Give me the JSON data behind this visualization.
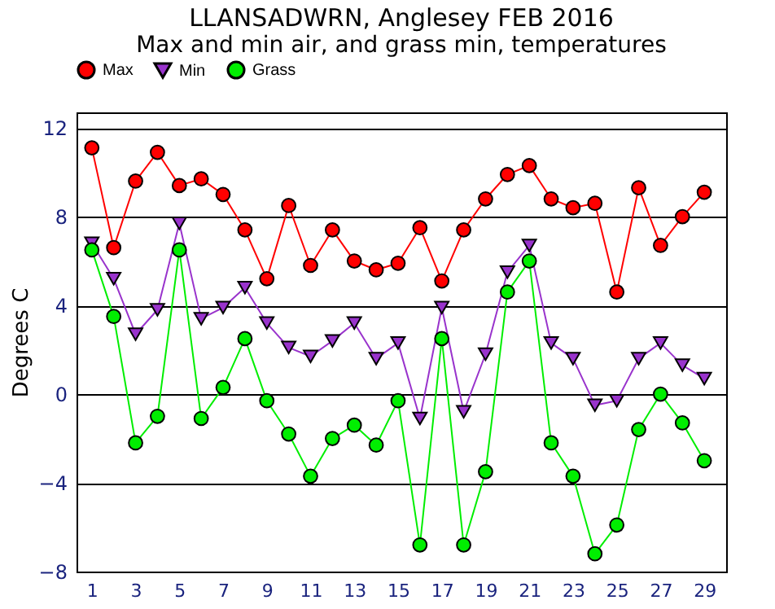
{
  "chart_data": {
    "type": "line",
    "title": "LLANSADWRN, Anglesey FEB 2016",
    "subtitle": "Max and min air, and grass min, temperatures",
    "ylabel": "Degrees C",
    "x": [
      1,
      2,
      3,
      4,
      5,
      6,
      7,
      8,
      9,
      10,
      11,
      12,
      13,
      14,
      15,
      16,
      17,
      18,
      19,
      20,
      21,
      22,
      23,
      24,
      25,
      26,
      27,
      28,
      29
    ],
    "series": [
      {
        "name": "Max",
        "color": "#ff0000",
        "marker": "circle",
        "values": [
          11.1,
          6.6,
          9.6,
          10.9,
          9.4,
          9.7,
          9.0,
          7.4,
          5.2,
          8.5,
          5.8,
          7.4,
          6.0,
          5.6,
          5.9,
          7.5,
          5.1,
          7.4,
          8.8,
          9.9,
          10.3,
          8.8,
          8.4,
          8.6,
          4.6,
          9.3,
          6.7,
          8.0,
          9.1
        ]
      },
      {
        "name": "Min",
        "color": "#9933cc",
        "marker": "triangle-down",
        "values": [
          6.8,
          5.2,
          2.7,
          3.8,
          7.7,
          3.4,
          3.9,
          4.8,
          3.2,
          2.1,
          1.7,
          2.4,
          3.2,
          1.6,
          2.3,
          -1.1,
          3.9,
          -0.8,
          1.8,
          5.5,
          6.7,
          2.3,
          1.6,
          -0.5,
          -0.3,
          1.6,
          2.3,
          1.3,
          0.7
        ]
      },
      {
        "name": "Grass",
        "color": "#00ee00",
        "marker": "circle",
        "values": [
          6.5,
          3.5,
          -2.2,
          -1.0,
          6.5,
          -1.1,
          0.3,
          2.5,
          -0.3,
          -1.8,
          -3.7,
          -2.0,
          -1.4,
          -2.3,
          -0.3,
          -6.8,
          2.5,
          -6.8,
          -3.5,
          4.6,
          6.0,
          -2.2,
          -3.7,
          -7.2,
          -5.9,
          -1.6,
          0.0,
          -1.3,
          -3.0
        ]
      }
    ],
    "xlim": [
      0.3,
      30
    ],
    "xticks": [
      1,
      3,
      5,
      7,
      9,
      11,
      13,
      15,
      17,
      19,
      21,
      23,
      25,
      27,
      29
    ],
    "ylim": [
      -8,
      12.7
    ],
    "yticks": [
      -8,
      -4,
      0,
      4,
      8,
      12
    ],
    "grid": "y",
    "legend": "top"
  }
}
